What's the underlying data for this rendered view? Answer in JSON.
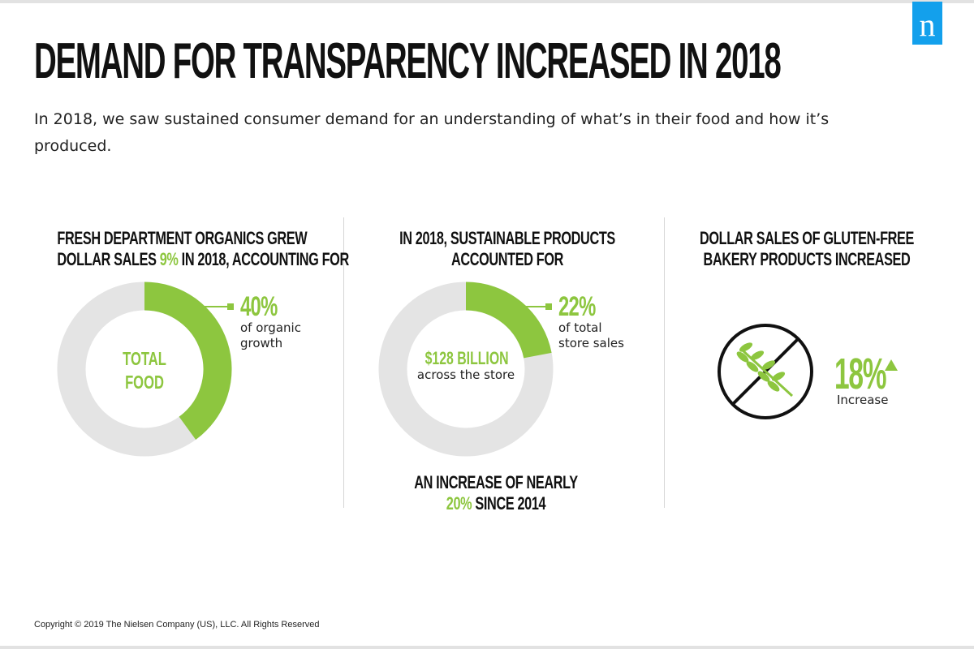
{
  "brand": {
    "logo_letter": "n",
    "logo_color": "#13a0ec"
  },
  "title": "DEMAND FOR TRANSPARENCY INCREASED IN 2018",
  "intro": "In 2018, we saw sustained consumer demand for an understanding of what’s in their food and how it’s produced.",
  "colors": {
    "accent_green": "#8dc63f",
    "ring_grey": "#e4e4e4"
  },
  "panel1": {
    "heading_line1": "FRESH DEPARTMENT ORGANICS GREW",
    "heading_line2_pre": "DOLLAR SALES ",
    "heading_highlight": "9%",
    "heading_line2_post": " IN 2018, ACCOUNTING FOR",
    "center_line1": "TOTAL",
    "center_line2": "FOOD",
    "callout_value": "40%",
    "callout_text_line1": "of organic",
    "callout_text_line2": "growth"
  },
  "panel2": {
    "heading_line1": "IN 2018, SUSTAINABLE PRODUCTS",
    "heading_line2": "ACCOUNTED FOR",
    "center_value": "$128 BILLION",
    "center_text": "across the store",
    "callout_value": "22%",
    "callout_text_line1": "of total",
    "callout_text_line2": "store sales",
    "footer_line1": "AN INCREASE OF NEARLY",
    "footer_highlight": "20%",
    "footer_line2_post": " SINCE 2014"
  },
  "panel3": {
    "heading_line1": "DOLLAR SALES OF GLUTEN-FREE",
    "heading_line2": "BAKERY PRODUCTS INCREASED",
    "icon": "no-gluten-wheat-icon",
    "stat_value": "18%",
    "stat_label": "Increase",
    "trend_icon": "up-triangle-icon"
  },
  "chart_data": [
    {
      "type": "pie",
      "variant": "donut",
      "categories": [
        "of organic growth",
        ""
      ],
      "values": [
        40,
        60
      ],
      "center_label": "TOTAL FOOD"
    },
    {
      "type": "pie",
      "variant": "donut",
      "categories": [
        "of total store sales",
        ""
      ],
      "values": [
        22,
        78
      ],
      "center_label": "$128 BILLION across the store"
    }
  ],
  "copyright": "Copyright © 2019 The Nielsen Company (US), LLC. All Rights Reserved"
}
